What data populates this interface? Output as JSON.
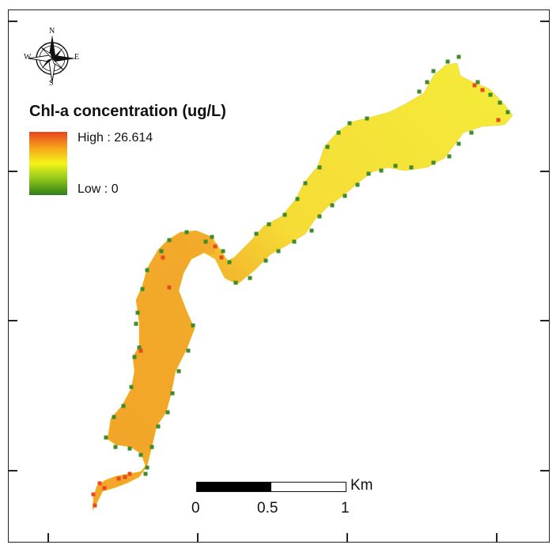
{
  "legend": {
    "title": "Chl-a concentration (ug/L)",
    "high_label": "High : 26.614",
    "low_label": "Low : 0",
    "ramp_colors": [
      "#e8441e",
      "#f7a21b",
      "#f4f41a",
      "#8ec61b",
      "#2e7d1a"
    ]
  },
  "north_arrow": {
    "n": "N",
    "s": "S",
    "e": "E",
    "w": "W"
  },
  "scale_bar": {
    "labels": [
      "0",
      "0.5",
      "1"
    ],
    "unit": "Km",
    "fill_colors": [
      "#000000",
      "#ffffff"
    ]
  },
  "colors": {
    "upstream_body": "#f2b52d",
    "downstream_body": "#f5e83a",
    "shore_pixels": "#3f8a2a",
    "hotspot_pixels": "#e84a1f"
  }
}
